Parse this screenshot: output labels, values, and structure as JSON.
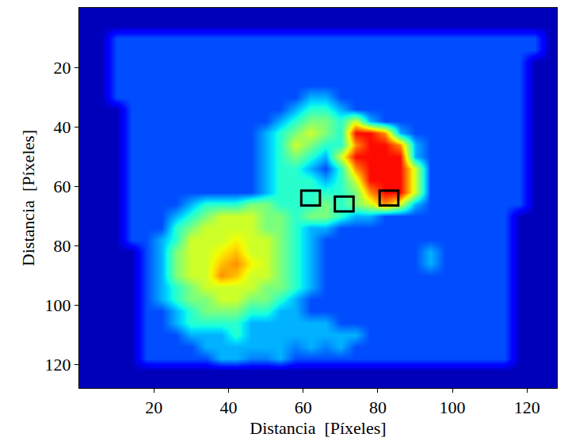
{
  "chart_data": {
    "type": "heatmap",
    "x_label": "Distancia  [Píxeles]",
    "y_label": "Distancia  [Píxeles]",
    "xlim": [
      0,
      128
    ],
    "ylim": [
      128,
      0
    ],
    "xticks": [
      20,
      40,
      60,
      80,
      100,
      120
    ],
    "yticks": [
      20,
      40,
      60,
      80,
      100,
      120
    ],
    "color": "jet",
    "zlim": [
      0,
      10
    ],
    "x": [
      2,
      6,
      10,
      14,
      18,
      22,
      26,
      30,
      34,
      38,
      42,
      46,
      50,
      54,
      58,
      62,
      66,
      70,
      74,
      78,
      82,
      86,
      90,
      94,
      98,
      102,
      106,
      110,
      114,
      118,
      122,
      126
    ],
    "y": [
      2,
      6,
      10,
      14,
      18,
      22,
      26,
      30,
      34,
      38,
      42,
      46,
      50,
      54,
      58,
      62,
      66,
      70,
      74,
      78,
      82,
      86,
      90,
      94,
      98,
      102,
      106,
      110,
      114,
      118,
      122,
      126
    ],
    "z": [
      [
        0.5,
        0.5,
        0.5,
        0.5,
        0.5,
        0.5,
        0.5,
        0.5,
        0.5,
        0.5,
        0.5,
        0.5,
        0.5,
        0.5,
        0.5,
        0.5,
        0.5,
        0.5,
        0.5,
        0.5,
        0.5,
        0.5,
        0.5,
        0.5,
        0.5,
        0.5,
        0.5,
        0.5,
        0.5,
        0.5,
        0.5,
        0.5
      ],
      [
        0.5,
        0.5,
        0.5,
        0.5,
        0.5,
        0.5,
        0.5,
        0.5,
        0.5,
        0.5,
        0.5,
        0.5,
        0.5,
        0.5,
        0.5,
        0.5,
        0.5,
        0.5,
        0.5,
        0.5,
        0.5,
        0.5,
        0.5,
        0.5,
        0.5,
        0.5,
        0.5,
        0.5,
        0.5,
        0.5,
        0.5,
        0.5
      ],
      [
        0.5,
        0.5,
        2,
        2,
        2,
        2,
        2,
        2,
        2,
        2,
        2,
        2,
        2,
        2,
        2,
        2,
        2,
        2,
        2,
        2,
        2,
        2,
        2,
        2,
        2,
        2,
        2,
        2,
        2,
        2,
        2,
        0.5
      ],
      [
        0.5,
        0.5,
        2,
        2,
        2,
        2,
        2,
        2,
        2,
        2,
        2,
        2,
        2,
        2,
        2,
        2,
        2,
        2,
        2,
        2,
        2,
        2,
        2,
        2,
        2,
        2,
        2,
        2,
        2,
        2,
        2,
        0.5
      ],
      [
        0.5,
        0.5,
        2,
        2,
        2,
        2,
        2,
        2,
        2,
        2,
        2,
        2,
        2,
        2,
        2,
        2,
        2,
        2,
        2,
        2,
        2,
        2,
        2,
        2,
        2,
        2,
        2,
        2,
        2,
        2,
        0.5,
        0.5
      ],
      [
        0.5,
        0.5,
        2,
        2,
        2,
        2,
        2,
        2,
        2,
        2,
        2,
        2,
        2,
        2,
        2,
        2,
        2,
        2,
        2,
        2,
        2,
        2,
        2,
        2,
        2,
        2,
        2,
        2,
        2,
        2,
        0.5,
        0.5
      ],
      [
        0.5,
        0.5,
        2,
        2,
        2,
        2,
        2,
        2,
        2,
        2,
        2,
        2,
        2,
        2,
        2,
        2,
        2,
        2,
        2,
        2,
        2,
        2,
        2,
        2,
        2,
        2,
        2,
        2,
        2,
        2,
        0.5,
        0.5
      ],
      [
        0.5,
        0.5,
        2,
        2,
        2,
        2,
        2,
        2,
        2,
        2,
        2,
        2,
        2,
        2,
        2,
        3,
        3,
        2,
        2,
        2,
        2,
        2,
        2,
        2,
        2,
        2,
        2,
        2,
        2,
        2,
        0.5,
        0.5
      ],
      [
        0.5,
        0.5,
        0.5,
        2,
        2,
        2,
        2,
        2,
        2,
        2,
        2,
        2,
        2,
        2,
        3,
        4,
        4,
        3,
        2,
        2,
        2,
        2,
        2,
        2,
        2,
        2,
        2,
        2,
        2,
        2,
        0.5,
        0.5
      ],
      [
        0.5,
        0.5,
        0.5,
        2,
        2,
        2,
        2,
        2,
        2,
        2,
        2,
        2,
        2,
        3,
        4,
        5,
        5,
        4,
        6,
        3,
        2,
        2,
        2,
        2,
        2,
        2,
        2,
        2,
        2,
        2,
        0.5,
        0.5
      ],
      [
        0.5,
        0.5,
        0.5,
        2,
        2,
        2,
        2,
        2,
        2,
        2,
        2,
        2,
        3,
        4,
        5,
        6,
        5,
        4,
        8.8,
        8.8,
        7.5,
        3,
        2,
        2,
        2,
        2,
        2,
        2,
        2,
        2,
        0.5,
        0.5
      ],
      [
        0.5,
        0.5,
        0.5,
        2,
        2,
        2,
        2,
        2,
        2,
        2,
        2,
        2,
        3,
        4,
        6,
        5,
        4,
        4,
        7.5,
        8.8,
        8.8,
        7.5,
        3,
        2,
        2,
        2,
        2,
        2,
        2,
        2,
        0.5,
        0.5
      ],
      [
        0.5,
        0.5,
        0.5,
        2,
        2,
        2,
        2,
        2,
        2,
        2,
        2,
        2,
        3,
        4,
        5,
        4,
        3,
        6,
        8.8,
        8.8,
        8.8,
        8.8,
        3,
        2,
        2,
        2,
        2,
        2,
        2,
        2,
        0.5,
        0.5
      ],
      [
        0.5,
        0.5,
        0.5,
        2,
        2,
        2,
        2,
        2,
        2,
        2,
        2,
        2,
        3,
        4,
        4,
        3,
        2,
        4,
        7.5,
        8.8,
        8.8,
        8.8,
        6,
        2,
        2,
        2,
        2,
        2,
        2,
        2,
        0.5,
        0.5
      ],
      [
        0.5,
        0.5,
        0.5,
        2,
        2,
        2,
        2,
        2,
        2,
        2,
        2,
        2,
        3,
        4,
        4,
        4,
        3,
        4,
        6,
        8.8,
        8.8,
        8.8,
        6,
        2,
        2,
        2,
        2,
        2,
        2,
        2,
        0.5,
        0.5
      ],
      [
        0.5,
        0.5,
        0.5,
        2,
        2,
        2,
        2,
        2,
        2,
        2,
        2,
        2,
        3,
        4,
        4,
        4,
        4,
        4,
        5,
        7.5,
        8.8,
        8.8,
        6,
        2,
        2,
        2,
        2,
        2,
        2,
        2,
        0.5,
        0.5
      ],
      [
        0.5,
        0.5,
        0.5,
        2,
        2,
        2,
        2,
        3,
        4,
        4,
        4,
        5,
        5,
        4,
        4,
        4,
        5,
        4,
        5,
        6,
        7.5,
        6,
        3,
        2,
        2,
        2,
        2,
        2,
        2,
        2,
        0.5,
        0.5
      ],
      [
        0.5,
        0.5,
        0.5,
        2,
        2,
        2,
        3,
        4,
        5,
        6,
        6,
        6,
        5,
        5,
        4,
        5,
        5,
        4,
        3,
        3,
        2,
        2,
        2,
        2,
        2,
        2,
        2,
        2,
        2,
        0.5,
        0.5,
        0.5
      ],
      [
        0.5,
        0.5,
        0.5,
        2,
        2,
        2,
        4,
        5,
        6,
        6,
        6,
        6,
        5,
        5,
        4,
        3,
        3,
        2,
        2,
        2,
        2,
        2,
        2,
        2,
        2,
        2,
        2,
        2,
        2,
        0.5,
        0.5,
        0.5
      ],
      [
        0.5,
        0.5,
        0.5,
        2,
        2,
        3,
        4,
        6,
        6,
        6,
        6.5,
        6,
        6,
        5,
        4,
        3,
        2,
        2,
        2,
        2,
        2,
        2,
        2,
        2,
        2,
        2,
        2,
        2,
        2,
        0.5,
        0.5,
        0.5
      ],
      [
        0.5,
        0.5,
        0.5,
        0.5,
        2,
        3,
        5,
        6,
        6,
        6.5,
        7,
        6,
        6,
        5,
        4,
        3,
        2,
        2,
        2,
        2,
        2,
        2,
        2,
        3,
        2,
        2,
        2,
        2,
        2,
        0.5,
        0.5,
        0.5
      ],
      [
        0.5,
        0.5,
        0.5,
        0.5,
        2,
        3,
        5,
        6,
        6,
        7,
        7.5,
        6.5,
        6,
        5,
        4,
        3,
        2,
        2,
        2,
        2,
        2,
        2,
        2,
        3,
        2,
        2,
        2,
        2,
        2,
        0.5,
        0.5,
        0.5
      ],
      [
        0.5,
        0.5,
        0.5,
        0.5,
        2,
        3,
        5,
        6,
        6,
        7.5,
        7,
        6,
        6,
        5,
        4,
        3,
        2,
        2,
        2,
        2,
        2,
        2,
        2,
        2,
        2,
        2,
        2,
        2,
        2,
        0.5,
        0.5,
        0.5
      ],
      [
        0.5,
        0.5,
        0.5,
        0.5,
        2,
        3,
        4,
        5,
        6,
        6,
        6,
        6,
        5,
        5,
        4,
        3,
        2,
        2,
        2,
        2,
        2,
        2,
        2,
        2,
        2,
        2,
        2,
        2,
        2,
        0.5,
        0.5,
        0.5
      ],
      [
        0.5,
        0.5,
        0.5,
        0.5,
        2,
        3,
        4,
        5,
        5,
        6,
        6,
        5,
        5,
        4,
        3,
        2,
        2,
        2,
        2,
        2,
        2,
        2,
        2,
        2,
        2,
        2,
        2,
        2,
        2,
        0.5,
        0.5,
        0.5
      ],
      [
        0.5,
        0.5,
        0.5,
        0.5,
        2,
        2,
        3,
        4,
        5,
        5,
        5,
        4,
        4,
        3,
        3,
        2,
        2,
        2,
        2,
        2,
        2,
        2,
        2,
        2,
        2,
        2,
        2,
        2,
        2,
        0.5,
        0.5,
        0.5
      ],
      [
        0.5,
        0.5,
        0.5,
        0.5,
        2,
        2,
        3,
        4,
        4,
        4,
        4,
        3,
        3,
        3,
        3,
        3,
        3,
        2,
        2,
        2,
        2,
        2,
        2,
        2,
        2,
        2,
        2,
        2,
        2,
        0.5,
        0.5,
        0.5
      ],
      [
        0.5,
        0.5,
        0.5,
        0.5,
        2,
        2,
        2,
        3,
        3,
        3,
        4,
        3,
        3,
        3,
        3,
        3,
        3,
        3,
        3,
        2,
        2,
        2,
        2,
        2,
        2,
        2,
        2,
        2,
        2,
        0.5,
        0.5,
        0.5
      ],
      [
        0.5,
        0.5,
        0.5,
        0.5,
        2,
        2,
        2,
        2,
        3,
        3,
        3,
        3,
        3,
        3,
        2.5,
        3,
        2.5,
        3,
        2,
        2,
        2,
        2,
        2,
        2,
        2,
        2,
        2,
        2,
        2,
        0.5,
        0.5,
        0.5
      ],
      [
        0.5,
        0.5,
        0.5,
        0.5,
        2,
        2,
        2,
        2,
        2,
        3,
        3,
        2.5,
        2.5,
        3,
        2,
        2,
        2,
        2,
        2,
        2,
        2,
        2,
        2,
        2,
        2,
        2,
        2,
        2,
        2,
        0.5,
        0.5,
        0.5
      ],
      [
        0.5,
        0.5,
        0.5,
        0.5,
        0.5,
        0.5,
        0.5,
        0.5,
        0.5,
        0.5,
        0.5,
        0.5,
        0.5,
        0.5,
        0.5,
        0.5,
        0.5,
        0.5,
        0.5,
        0.5,
        0.5,
        0.5,
        0.5,
        0.5,
        0.5,
        0.5,
        0.5,
        0.5,
        0.5,
        0.5,
        0.5,
        0.5
      ],
      [
        0.5,
        0.5,
        0.5,
        0.5,
        0.5,
        0.5,
        0.5,
        0.5,
        0.5,
        0.5,
        0.5,
        0.5,
        0.5,
        0.5,
        0.5,
        0.5,
        0.5,
        0.5,
        0.5,
        0.5,
        0.5,
        0.5,
        0.5,
        0.5,
        0.5,
        0.5,
        0.5,
        0.5,
        0.5,
        0.5,
        0.5,
        0.5
      ]
    ],
    "rois": [
      {
        "x0": 59.5,
        "x1": 64.5,
        "y0": 61.5,
        "y1": 66.5
      },
      {
        "x0": 68.5,
        "x1": 73.5,
        "y0": 63.5,
        "y1": 68.5
      },
      {
        "x0": 80.5,
        "x1": 85.5,
        "y0": 61.5,
        "y1": 66.5
      }
    ]
  }
}
